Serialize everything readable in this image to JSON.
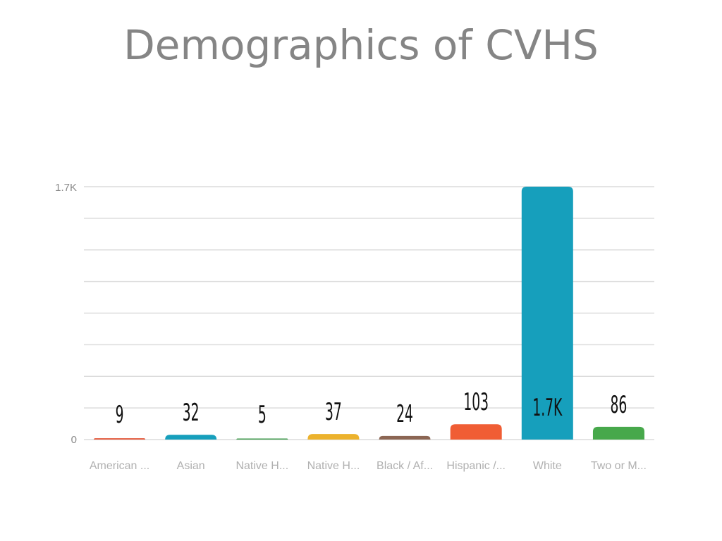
{
  "chart_data": {
    "type": "bar",
    "title": "Demographics of CVHS",
    "xlabel": "",
    "ylabel": "",
    "ylim": [
      0,
      1700
    ],
    "grid": true,
    "y_tick_labels": [
      "0",
      "1.7K"
    ],
    "categories": [
      "American ...",
      "Asian",
      "Native H...",
      "Native H...",
      "Black / Af...",
      "Hispanic /...",
      "White",
      "Two or M..."
    ],
    "values": [
      9,
      32,
      5,
      37,
      24,
      103,
      1700,
      86
    ],
    "data_labels": [
      "9",
      "32",
      "5",
      "37",
      "24",
      "103",
      "1.7K",
      "86"
    ],
    "colors": [
      "#e4573a",
      "#169fbc",
      "#3b9a4a",
      "#ecb22d",
      "#8c6654",
      "#f05d34",
      "#169fbc",
      "#47a84b"
    ]
  }
}
